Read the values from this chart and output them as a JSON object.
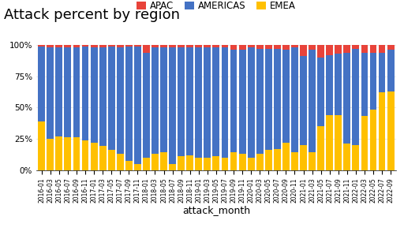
{
  "title": "Attack percent by region",
  "xlabel": "attack_month",
  "legend_labels": [
    "APAC",
    "AMERICAS",
    "EMEA"
  ],
  "colors": {
    "APAC": "#e8433a",
    "AMERICAS": "#4472c4",
    "EMEA": "#ffc000"
  },
  "months": [
    "2016-01",
    "2016-03",
    "2016-05",
    "2016-07",
    "2016-09",
    "2016-11",
    "2017-01",
    "2017-03",
    "2017-05",
    "2017-07",
    "2017-09",
    "2017-11",
    "2018-01",
    "2018-03",
    "2018-05",
    "2018-07",
    "2018-09",
    "2018-11",
    "2019-01",
    "2019-03",
    "2019-05",
    "2019-07",
    "2019-09",
    "2019-11",
    "2020-01",
    "2020-03",
    "2020-05",
    "2020-07",
    "2020-09",
    "2020-11",
    "2021-01",
    "2021-03",
    "2021-05",
    "2021-07",
    "2021-09",
    "2021-11",
    "2022-01",
    "2022-03",
    "2022-05",
    "2022-07",
    "2022-09"
  ],
  "EMEA": [
    0.39,
    0.25,
    0.27,
    0.26,
    0.26,
    0.24,
    0.22,
    0.19,
    0.16,
    0.13,
    0.07,
    0.05,
    0.1,
    0.13,
    0.14,
    0.05,
    0.11,
    0.12,
    0.1,
    0.1,
    0.11,
    0.1,
    0.14,
    0.13,
    0.1,
    0.13,
    0.16,
    0.17,
    0.22,
    0.14,
    0.2,
    0.14,
    0.35,
    0.44,
    0.44,
    0.21,
    0.2,
    0.43,
    0.48,
    0.62,
    0.63
  ],
  "AMERICAS": [
    0.6,
    0.73,
    0.71,
    0.72,
    0.72,
    0.75,
    0.76,
    0.79,
    0.83,
    0.85,
    0.92,
    0.94,
    0.84,
    0.85,
    0.84,
    0.93,
    0.87,
    0.86,
    0.88,
    0.88,
    0.87,
    0.88,
    0.82,
    0.83,
    0.88,
    0.84,
    0.81,
    0.8,
    0.74,
    0.84,
    0.71,
    0.82,
    0.55,
    0.48,
    0.49,
    0.73,
    0.77,
    0.51,
    0.46,
    0.32,
    0.33
  ],
  "APAC": [
    0.01,
    0.02,
    0.02,
    0.02,
    0.02,
    0.01,
    0.02,
    0.02,
    0.01,
    0.02,
    0.01,
    0.01,
    0.06,
    0.02,
    0.02,
    0.02,
    0.02,
    0.02,
    0.02,
    0.02,
    0.02,
    0.02,
    0.04,
    0.04,
    0.02,
    0.03,
    0.03,
    0.03,
    0.04,
    0.02,
    0.09,
    0.04,
    0.1,
    0.08,
    0.07,
    0.06,
    0.03,
    0.06,
    0.06,
    0.06,
    0.04
  ],
  "background_color": "#ffffff",
  "title_fontsize": 13,
  "label_fontsize": 9,
  "tick_fontsize": 5.5,
  "legend_fontsize": 8.5
}
